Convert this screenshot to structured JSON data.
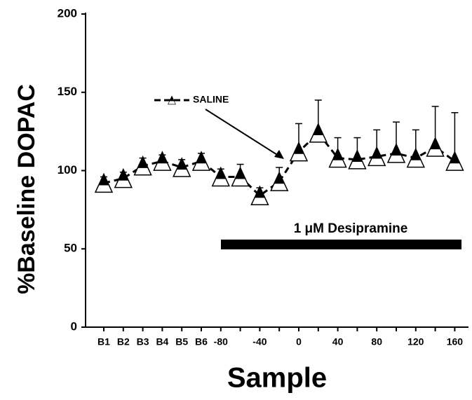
{
  "chart_data": {
    "type": "line",
    "x_label": "Sample",
    "y_label": "%Baseline DOPAC",
    "categories": [
      "B1",
      "B2",
      "B3",
      "B4",
      "B5",
      "B6",
      "-80",
      null,
      "-40",
      null,
      "0",
      null,
      "40",
      null,
      "80",
      null,
      "120",
      null,
      "160"
    ],
    "series": [
      {
        "name": "SALINE",
        "color": "#000000",
        "values": [
          92,
          95,
          103,
          106,
          102,
          106,
          96,
          96,
          84,
          93,
          112,
          124,
          108,
          107,
          109,
          111,
          108,
          115,
          106
        ],
        "errors": [
          4,
          4,
          5,
          4,
          5,
          5,
          5,
          8,
          5,
          9,
          18,
          21,
          13,
          14,
          17,
          20,
          18,
          26,
          31
        ]
      }
    ],
    "ylim": [
      0,
      200
    ],
    "yticks": [
      0,
      50,
      100,
      150,
      200
    ],
    "annotation": "1 μM Desipramine"
  }
}
